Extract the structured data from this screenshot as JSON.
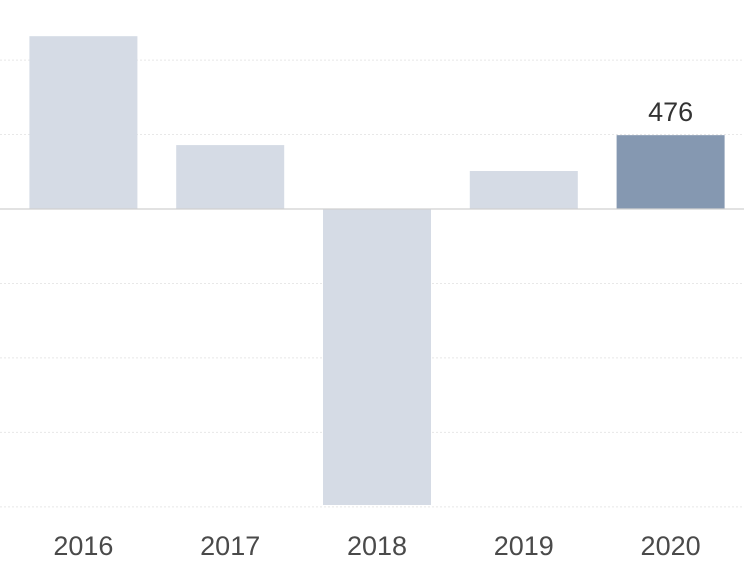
{
  "chart_data": {
    "type": "bar",
    "categories": [
      "2016",
      "2017",
      "2018",
      "2019",
      "2020"
    ],
    "values": [
      1114,
      412,
      -1908,
      245,
      476
    ],
    "data_labels": [
      "",
      "",
      "",
      "",
      "476"
    ],
    "highlight_index": 4,
    "ylim": [
      -1950,
      1250
    ],
    "grid": true,
    "grid_step": 480,
    "colors": {
      "bar": "#d5dbe5",
      "highlight": "#8598b1",
      "zero_line": "#d0d0d0",
      "grid": "#e8e8e8"
    }
  }
}
